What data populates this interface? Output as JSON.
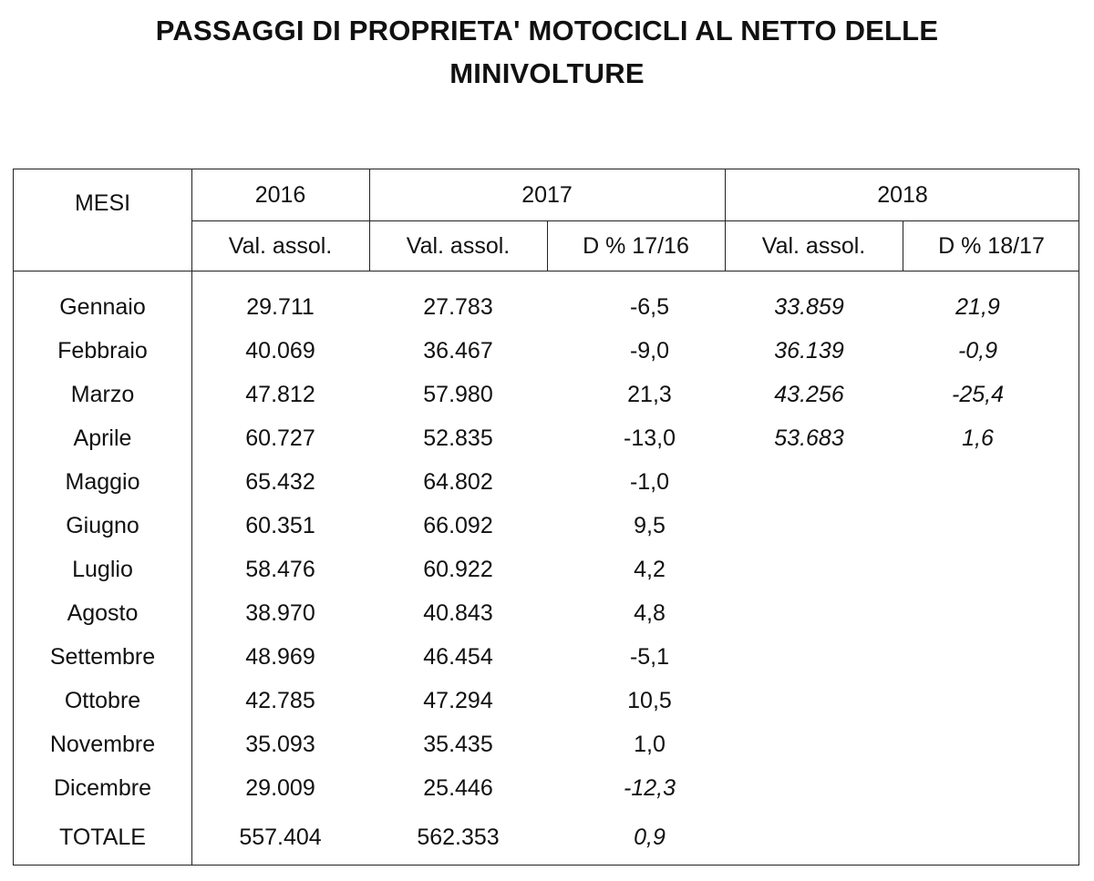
{
  "title_lines": [
    "PASSAGGI DI PROPRIETA' MOTOCICLI AL NETTO DELLE",
    "MINIVOLTURE"
  ],
  "header": {
    "mesi": "MESI",
    "years": [
      "2016",
      "2017",
      "2018"
    ],
    "sub": [
      "Val. assol.",
      "Val. assol.",
      "D % 17/16",
      "Val. assol.",
      "D % 18/17"
    ]
  },
  "rows": [
    {
      "mese": "Gennaio",
      "v2016": "29.711",
      "v2017": "27.783",
      "d1716": "-6,5",
      "v2018": "33.859",
      "d1817": "21,9"
    },
    {
      "mese": "Febbraio",
      "v2016": "40.069",
      "v2017": "36.467",
      "d1716": "-9,0",
      "v2018": "36.139",
      "d1817": "-0,9"
    },
    {
      "mese": "Marzo",
      "v2016": "47.812",
      "v2017": "57.980",
      "d1716": "21,3",
      "v2018": "43.256",
      "d1817": "-25,4"
    },
    {
      "mese": "Aprile",
      "v2016": "60.727",
      "v2017": "52.835",
      "d1716": "-13,0",
      "v2018": "53.683",
      "d1817": "1,6"
    },
    {
      "mese": "Maggio",
      "v2016": "65.432",
      "v2017": "64.802",
      "d1716": "-1,0"
    },
    {
      "mese": "Giugno",
      "v2016": "60.351",
      "v2017": "66.092",
      "d1716": "9,5"
    },
    {
      "mese": "Luglio",
      "v2016": "58.476",
      "v2017": "60.922",
      "d1716": "4,2"
    },
    {
      "mese": "Agosto",
      "v2016": "38.970",
      "v2017": "40.843",
      "d1716": "4,8"
    },
    {
      "mese": "Settembre",
      "v2016": "48.969",
      "v2017": "46.454",
      "d1716": "-5,1"
    },
    {
      "mese": "Ottobre",
      "v2016": "42.785",
      "v2017": "47.294",
      "d1716": "10,5"
    },
    {
      "mese": "Novembre",
      "v2016": "35.093",
      "v2017": "35.435",
      "d1716": "1,0"
    },
    {
      "mese": "Dicembre",
      "v2016": "29.009",
      "v2017": "25.446",
      "d1716": "-12,3",
      "d1716_italic": true
    }
  ],
  "totale": {
    "mese": "TOTALE",
    "v2016": "557.404",
    "v2017": "562.353",
    "d1716": "0,9",
    "d1716_italic": true
  }
}
